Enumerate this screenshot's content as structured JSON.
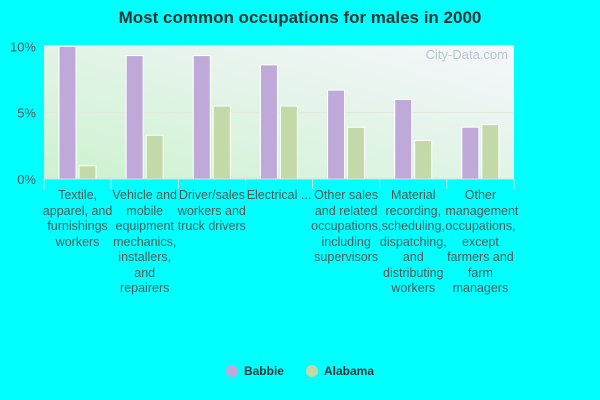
{
  "chart_data": {
    "type": "bar",
    "title": "Most common occupations for males in 2000",
    "categories": [
      "Textile, apparel, and furnishings workers",
      "Vehicle and mobile equipment mechanics, installers, and repairers",
      "Driver/sales workers and truck drivers",
      "Electrical ...",
      "Other sales and related occupations, including supervisors",
      "Material recording, scheduling, dispatching, and distributing workers",
      "Other management occupations, except farmers and farm managers"
    ],
    "series": [
      {
        "name": "Babbie",
        "color": "#bea9d9",
        "values": [
          10.0,
          9.3,
          9.3,
          8.6,
          6.7,
          6.0,
          3.9
        ]
      },
      {
        "name": "Alabama",
        "color": "#c4d9a8",
        "values": [
          1.0,
          3.3,
          5.5,
          5.5,
          3.9,
          2.9,
          4.1
        ]
      }
    ],
    "yticks": [
      "0%",
      "5%",
      "10%"
    ],
    "ylim": [
      0,
      10
    ],
    "grid": true,
    "legend": "bottom",
    "watermark": "City-Data.com"
  }
}
